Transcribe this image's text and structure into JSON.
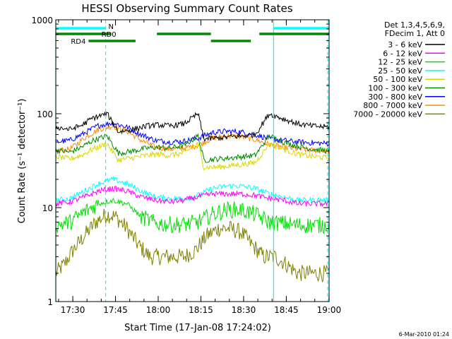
{
  "chart_data": {
    "type": "line",
    "title": "HESSI Observing Summary Count Rates",
    "xlabel": "Start Time (17-Jan-08 17:24:02)",
    "ylabel": "Count Rate (s⁻¹ detector⁻¹)",
    "yscale": "log",
    "ylim": [
      1,
      1000
    ],
    "xlim_minutes": [
      0,
      96
    ],
    "x_ticks": [
      "17:30",
      "17:45",
      "18:00",
      "18:15",
      "18:30",
      "18:45",
      "19:00"
    ],
    "x_tick_minutes": [
      5.97,
      20.97,
      35.97,
      50.97,
      65.97,
      80.97,
      95.97
    ],
    "y_ticks": [
      "1",
      "10",
      "100",
      "1000"
    ],
    "y_tick_values": [
      1,
      10,
      100,
      1000
    ],
    "grid": false,
    "legend_position": "right",
    "legend_header": [
      "Det 1,3,4,5,6,9,",
      "FDecim 1, Att 0"
    ],
    "series": [
      {
        "name": "3 - 6 keV",
        "color": "#000000",
        "x": [
          0,
          5,
          9,
          13,
          18,
          22,
          27,
          32,
          36,
          40,
          45,
          50,
          52,
          57,
          62,
          66,
          70,
          75,
          80,
          85,
          90,
          96
        ],
        "values": [
          72,
          68,
          75,
          90,
          100,
          64,
          68,
          74,
          76,
          74,
          78,
          100,
          54,
          55,
          57,
          58,
          60,
          100,
          88,
          78,
          74,
          72
        ]
      },
      {
        "name": "6 - 12 keV",
        "color": "#ff00ff",
        "x": [
          0,
          5,
          10,
          15,
          20,
          25,
          30,
          35,
          40,
          45,
          50,
          55,
          60,
          65,
          70,
          75,
          80,
          85,
          90,
          96
        ],
        "values": [
          11,
          11.5,
          13,
          15,
          16,
          15,
          13,
          12,
          11.5,
          12,
          13,
          14,
          14,
          14,
          13.5,
          12.5,
          12,
          11,
          11,
          11
        ]
      },
      {
        "name": "12 - 25 keV",
        "color": "#00e000",
        "x": [
          0,
          5,
          10,
          15,
          20,
          25,
          30,
          35,
          40,
          45,
          50,
          55,
          60,
          65,
          70,
          75,
          80,
          85,
          90,
          96
        ],
        "values": [
          6.5,
          7,
          9,
          11,
          12,
          11,
          8,
          6.8,
          6.6,
          6.6,
          7,
          8.5,
          9.5,
          9.5,
          8.5,
          7,
          6.8,
          6.5,
          6.5,
          6.5
        ]
      },
      {
        "name": "25 - 50 keV",
        "color": "#00ffff",
        "x": [
          0,
          5,
          10,
          15,
          20,
          25,
          30,
          35,
          40,
          45,
          50,
          55,
          60,
          65,
          70,
          75,
          80,
          85,
          90,
          96
        ],
        "values": [
          12,
          12.5,
          15,
          18,
          20,
          18,
          15,
          13,
          12.5,
          12.5,
          13.5,
          16,
          17,
          17,
          16,
          14,
          13,
          12,
          12,
          12
        ]
      },
      {
        "name": "50 - 100 keV",
        "color": "#d8d800",
        "x": [
          0,
          5,
          9,
          13,
          18,
          22,
          27,
          32,
          36,
          40,
          45,
          50,
          52,
          57,
          62,
          66,
          70,
          75,
          80,
          85,
          90,
          96
        ],
        "values": [
          35,
          33,
          36,
          42,
          48,
          32,
          34,
          36,
          37,
          36,
          38,
          48,
          27,
          27,
          28,
          29,
          30,
          48,
          42,
          37,
          35,
          34
        ]
      },
      {
        "name": "100 - 300 keV",
        "color": "#008800",
        "x": [
          0,
          5,
          9,
          13,
          18,
          22,
          27,
          32,
          36,
          40,
          45,
          50,
          52,
          57,
          62,
          66,
          70,
          75,
          80,
          85,
          90,
          96
        ],
        "values": [
          41,
          39,
          44,
          52,
          58,
          38,
          40,
          43,
          44,
          43,
          46,
          58,
          32,
          33,
          34,
          35,
          36,
          58,
          50,
          45,
          42,
          40
        ]
      },
      {
        "name": "300 - 800 keV",
        "color": "#0000ff",
        "x": [
          0,
          5,
          10,
          15,
          20,
          25,
          30,
          35,
          40,
          45,
          50,
          55,
          60,
          65,
          70,
          75,
          80,
          85,
          90,
          96
        ],
        "values": [
          50,
          52,
          62,
          75,
          80,
          72,
          60,
          52,
          50,
          51,
          55,
          63,
          65,
          64,
          60,
          54,
          52,
          50,
          49,
          48
        ]
      },
      {
        "name": "800 - 7000 keV",
        "color": "#ff8800",
        "x": [
          0,
          5,
          10,
          15,
          20,
          25,
          30,
          35,
          40,
          45,
          50,
          55,
          60,
          65,
          70,
          75,
          80,
          85,
          90,
          96
        ],
        "values": [
          40,
          42,
          55,
          68,
          74,
          65,
          52,
          44,
          42,
          43,
          46,
          55,
          58,
          57,
          53,
          47,
          44,
          42,
          41,
          40
        ]
      },
      {
        "name": "7000 - 20000 keV",
        "color": "#808000",
        "x": [
          0,
          3,
          6,
          10,
          14,
          18,
          21,
          25,
          29,
          33,
          37,
          41,
          45,
          49,
          53,
          57,
          61,
          65,
          69,
          73,
          77,
          81,
          85,
          90,
          96
        ],
        "values": [
          2,
          2.5,
          3.5,
          5,
          7,
          8.5,
          8,
          6,
          4,
          3,
          3,
          3,
          3,
          3.5,
          5,
          6,
          6,
          5.5,
          4,
          3,
          3,
          2.5,
          2,
          2,
          2
        ]
      }
    ],
    "status_bars": [
      {
        "label": "N",
        "color": "#00ffff",
        "segments_minutes": [
          [
            0,
            17.5
          ],
          [
            76.5,
            96
          ]
        ],
        "level": 1
      },
      {
        "label": "RD0",
        "color": "#008800",
        "segments_minutes": [
          [
            0,
            19.5
          ]
        ],
        "level": 2
      },
      {
        "label": "",
        "color": "#008800",
        "segments_minutes": [
          [
            35.5,
            54.5
          ],
          [
            71.5,
            96
          ]
        ],
        "level": 2
      },
      {
        "label": "RD4",
        "color": "#008800",
        "segments_minutes": [
          [
            11.5,
            28
          ]
        ],
        "level": 3
      },
      {
        "label": "",
        "color": "#008800",
        "segments_minutes": [
          [
            54.5,
            68.5
          ]
        ],
        "level": 3
      }
    ],
    "vertical_markers": [
      {
        "minutes": 0,
        "color": "#00ffff",
        "style": "solid"
      },
      {
        "minutes": 17.5,
        "color": "#00ffff",
        "style": "dashed"
      },
      {
        "minutes": 76.5,
        "color": "#00ffff",
        "style": "solid"
      },
      {
        "minutes": 95.5,
        "color": "#00ffff",
        "style": "dashed"
      }
    ]
  },
  "footer_date": "6-Mar-2010 01:24"
}
